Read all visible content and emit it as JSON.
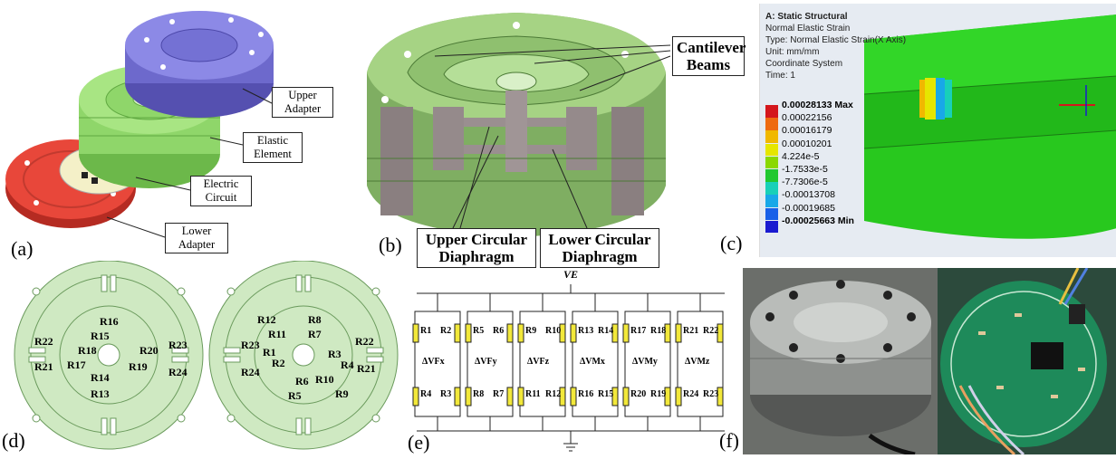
{
  "panels": {
    "a": {
      "label": "(a)",
      "callouts": [
        {
          "id": "upper-adapter",
          "text": "Upper Adapter"
        },
        {
          "id": "elastic-element",
          "text": "Elastic Element"
        },
        {
          "id": "electric-circuit",
          "text": "Electric Circuit"
        },
        {
          "id": "lower-adapter",
          "text": "Lower Adapter"
        }
      ],
      "colors": {
        "upper": "#7b78d8",
        "elastic": "#8fd66a",
        "circuit": "#f4f0c8",
        "lower": "#e8473a"
      }
    },
    "b": {
      "label": "(b)",
      "callouts": [
        {
          "id": "cantilever-beams",
          "text": "Cantilever Beams"
        },
        {
          "id": "upper-diaphragm",
          "text": "Upper Circular Diaphragm"
        },
        {
          "id": "lower-diaphragm",
          "text": "Lower Circular Diaphragm"
        }
      ]
    },
    "c": {
      "label": "(c)",
      "header": [
        "A: Static Structural",
        "Normal Elastic Strain",
        "Type: Normal Elastic Strain(X Axis)",
        "Unit: mm/mm",
        "Coordinate System",
        "Time: 1"
      ],
      "legend": [
        {
          "value": "0.00028133 Max",
          "color": "#d4161c"
        },
        {
          "value": "0.00022156",
          "color": "#ee6a10"
        },
        {
          "value": "0.00016179",
          "color": "#f0b800"
        },
        {
          "value": "0.00010201",
          "color": "#e6e600"
        },
        {
          "value": "4.224e-5",
          "color": "#8ad800"
        },
        {
          "value": "-1.7533e-5",
          "color": "#20c830"
        },
        {
          "value": "-7.7306e-5",
          "color": "#18d0b8"
        },
        {
          "value": "-0.00013708",
          "color": "#18a8e8"
        },
        {
          "value": "-0.00019685",
          "color": "#1860e8"
        },
        {
          "value": "-0.00025663 Min",
          "color": "#1a1ad0"
        }
      ]
    },
    "d": {
      "label": "(d)",
      "left_resistors": [
        "R16",
        "R15",
        "R18",
        "R17",
        "R14",
        "R13",
        "R20",
        "R19",
        "R22",
        "R21",
        "R23",
        "R24"
      ],
      "right_resistors": [
        "R12",
        "R8",
        "R11",
        "R7",
        "R23",
        "R1",
        "R2",
        "R3",
        "R4",
        "R22",
        "R21",
        "R24",
        "R6",
        "R10",
        "R5",
        "R9"
      ]
    },
    "e": {
      "label": "(e)",
      "supply": "VE",
      "bridges": [
        {
          "top": [
            "R1",
            "R2"
          ],
          "bottom": [
            "R4",
            "R3"
          ],
          "out": "ΔVFx"
        },
        {
          "top": [
            "R5",
            "R6"
          ],
          "bottom": [
            "R8",
            "R7"
          ],
          "out": "ΔVFy"
        },
        {
          "top": [
            "R9",
            "R10"
          ],
          "bottom": [
            "R11",
            "R12"
          ],
          "out": "ΔVFz"
        },
        {
          "top": [
            "R13",
            "R14"
          ],
          "bottom": [
            "R16",
            "R15"
          ],
          "out": "ΔVMx"
        },
        {
          "top": [
            "R17",
            "R18"
          ],
          "bottom": [
            "R20",
            "R19"
          ],
          "out": "ΔVMy"
        },
        {
          "top": [
            "R21",
            "R22"
          ],
          "bottom": [
            "R24",
            "R23"
          ],
          "out": "ΔVMz"
        }
      ]
    },
    "f": {
      "label": "(f)"
    }
  }
}
